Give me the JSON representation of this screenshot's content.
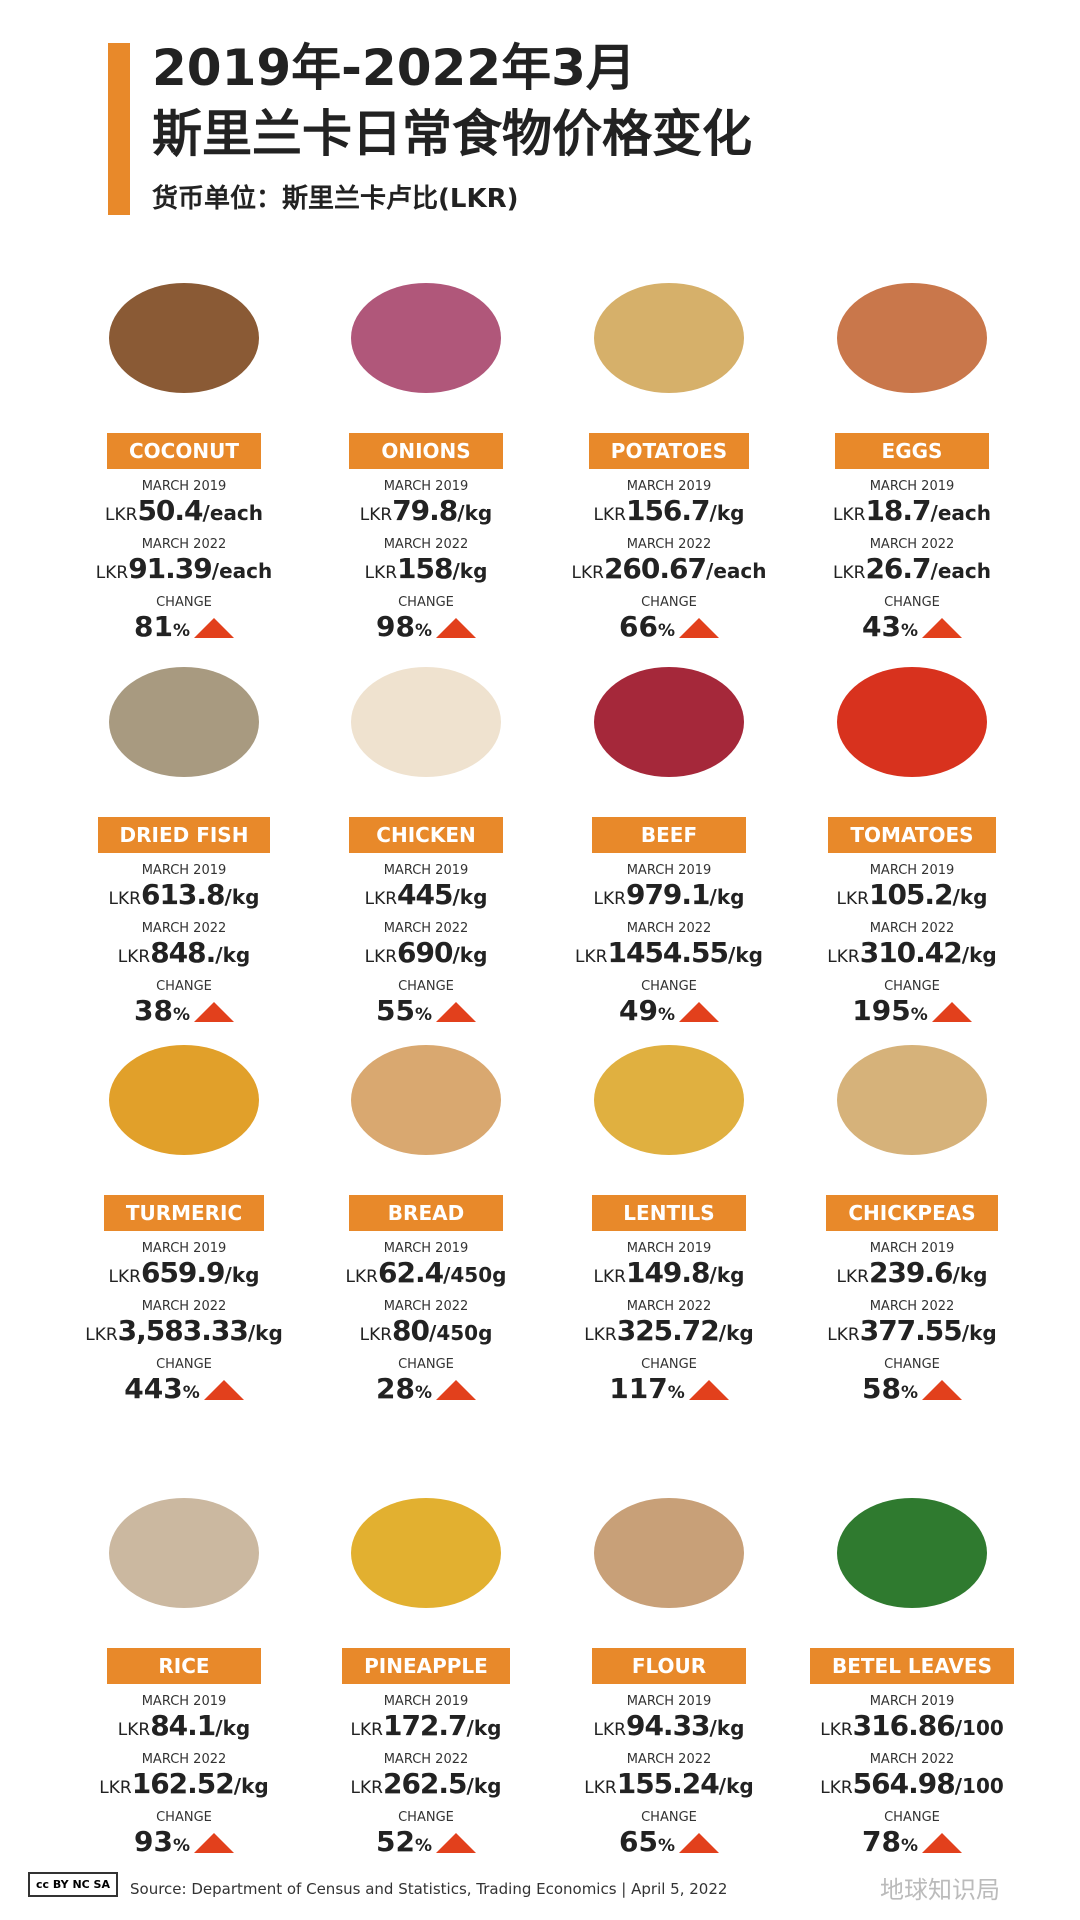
{
  "header": {
    "title_line1": "2019年-2022年3月",
    "title_line2": "斯里兰卡日常食物价格变化",
    "subtitle": "货币单位：斯里兰卡卢比(LKR)"
  },
  "labels": {
    "march_2019": "MARCH 2019",
    "march_2022": "MARCH 2022",
    "change": "CHANGE",
    "currency": "LKR",
    "percent": "%"
  },
  "items": [
    {
      "name": "COCONUT",
      "price_2019": "50.4",
      "unit_2019": "/each",
      "price_2022": "91.39",
      "unit_2022": "/each",
      "change": 81
    },
    {
      "name": "ONIONS",
      "price_2019": "79.8",
      "unit_2019": "/kg",
      "price_2022": "158",
      "unit_2022": "/kg",
      "change": 98
    },
    {
      "name": "POTATOES",
      "price_2019": "156.7",
      "unit_2019": "/kg",
      "price_2022": "260.67",
      "unit_2022": "/each",
      "change": 66
    },
    {
      "name": "EGGS",
      "price_2019": "18.7",
      "unit_2019": "/each",
      "price_2022": "26.7",
      "unit_2022": "/each",
      "change": 43
    },
    {
      "name": "DRIED FISH",
      "price_2019": "613.8",
      "unit_2019": "/kg",
      "price_2022": "848.",
      "unit_2022": "/kg",
      "change": 38
    },
    {
      "name": "CHICKEN",
      "price_2019": "445",
      "unit_2019": "/kg",
      "price_2022": "690",
      "unit_2022": "/kg",
      "change": 55
    },
    {
      "name": "BEEF",
      "price_2019": "979.1",
      "unit_2019": "/kg",
      "price_2022": "1454.55",
      "unit_2022": "/kg",
      "change": 49
    },
    {
      "name": "TOMATOES",
      "price_2019": "105.2",
      "unit_2019": "/kg",
      "price_2022": "310.42",
      "unit_2022": "/kg",
      "change": 195
    },
    {
      "name": "TURMERIC",
      "price_2019": "659.9",
      "unit_2019": "/kg",
      "price_2022": "3,583.33",
      "unit_2022": "/kg",
      "change": 443
    },
    {
      "name": "BREAD",
      "price_2019": "62.4",
      "unit_2019": "/450g",
      "price_2022": "80",
      "unit_2022": "/450g",
      "change": 28
    },
    {
      "name": "LENTILS",
      "price_2019": "149.8",
      "unit_2019": "/kg",
      "price_2022": "325.72",
      "unit_2022": "/kg",
      "change": 117
    },
    {
      "name": "CHICKPEAS",
      "price_2019": "239.6",
      "unit_2019": "/kg",
      "price_2022": "377.55",
      "unit_2022": "/kg",
      "change": 58
    },
    {
      "name": "RICE",
      "price_2019": "84.1",
      "unit_2019": "/kg",
      "price_2022": "162.52",
      "unit_2022": "/kg",
      "change": 93
    },
    {
      "name": "PINEAPPLE",
      "price_2019": "172.7",
      "unit_2019": "/kg",
      "price_2022": "262.5",
      "unit_2022": "/kg",
      "change": 52
    },
    {
      "name": "FLOUR",
      "price_2019": "94.33",
      "unit_2019": "/kg",
      "price_2022": "155.24",
      "unit_2022": "/kg",
      "change": 65
    },
    {
      "name": "BETEL LEAVES",
      "price_2019": "316.86",
      "unit_2019": "/100",
      "price_2022": "564.98",
      "unit_2022": "/100",
      "change": 78
    }
  ],
  "footer": {
    "license": "cc BY NC SA",
    "source": "Source: Department of Census and Statistics, Trading Economics  |  April 5, 2022",
    "watermark": "地球知识局"
  }
}
